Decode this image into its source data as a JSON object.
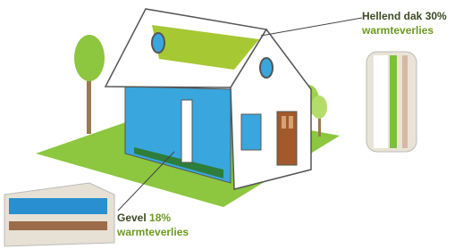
{
  "labels": [
    {
      "title": "Hellend dak",
      "percent": "30%",
      "text": "warmteverlies"
    },
    {
      "title": "Gevel",
      "percent": "18%",
      "text": "warmteverlies"
    }
  ]
}
